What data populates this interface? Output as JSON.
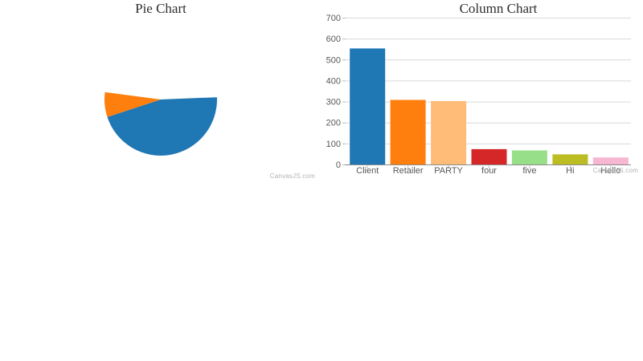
{
  "page": {
    "background": "#ffffff"
  },
  "watermark": "CanvasJS.com",
  "chart_data": [
    {
      "type": "pie",
      "title": "Pie Chart",
      "legend": "none",
      "labels_shown": false,
      "slices": [
        {
          "name": "blue-slice",
          "color": "#1F77B4",
          "start_deg": -2.3,
          "end_deg": 161.8,
          "share_of_visible": 0.864
        },
        {
          "name": "orange-slice",
          "color": "#FF7F0E",
          "start_deg": 161.8,
          "end_deg": 187.5,
          "share_of_visible": 0.136
        }
      ],
      "geometry": {
        "cx": 200,
        "cy": 124,
        "r": 70
      }
    },
    {
      "type": "bar",
      "title": "Column Chart",
      "categories": [
        "Client",
        "Retailer",
        "PARTY",
        "four",
        "five",
        "Hi",
        "Hello"
      ],
      "values": [
        555,
        310,
        304,
        75,
        69,
        50,
        35
      ],
      "colors": [
        "#1F77B4",
        "#FF7F0E",
        "#FFBB78",
        "#D62728",
        "#98DF8A",
        "#BCBD22",
        "#F7B6D2"
      ],
      "ylim": [
        0,
        700
      ],
      "yticks": [
        0,
        100,
        200,
        300,
        400,
        500,
        600,
        700
      ],
      "ytick_interval": 100,
      "grid": true,
      "legend": "none",
      "xlabel": "",
      "ylabel": ""
    }
  ],
  "style": {
    "grid_color": "#d9d9d9",
    "axis_line_color": "#8a8a8a",
    "tick_color": "#bbbbbb",
    "label_color": "#585858",
    "title_color": "#2e2e2e"
  }
}
